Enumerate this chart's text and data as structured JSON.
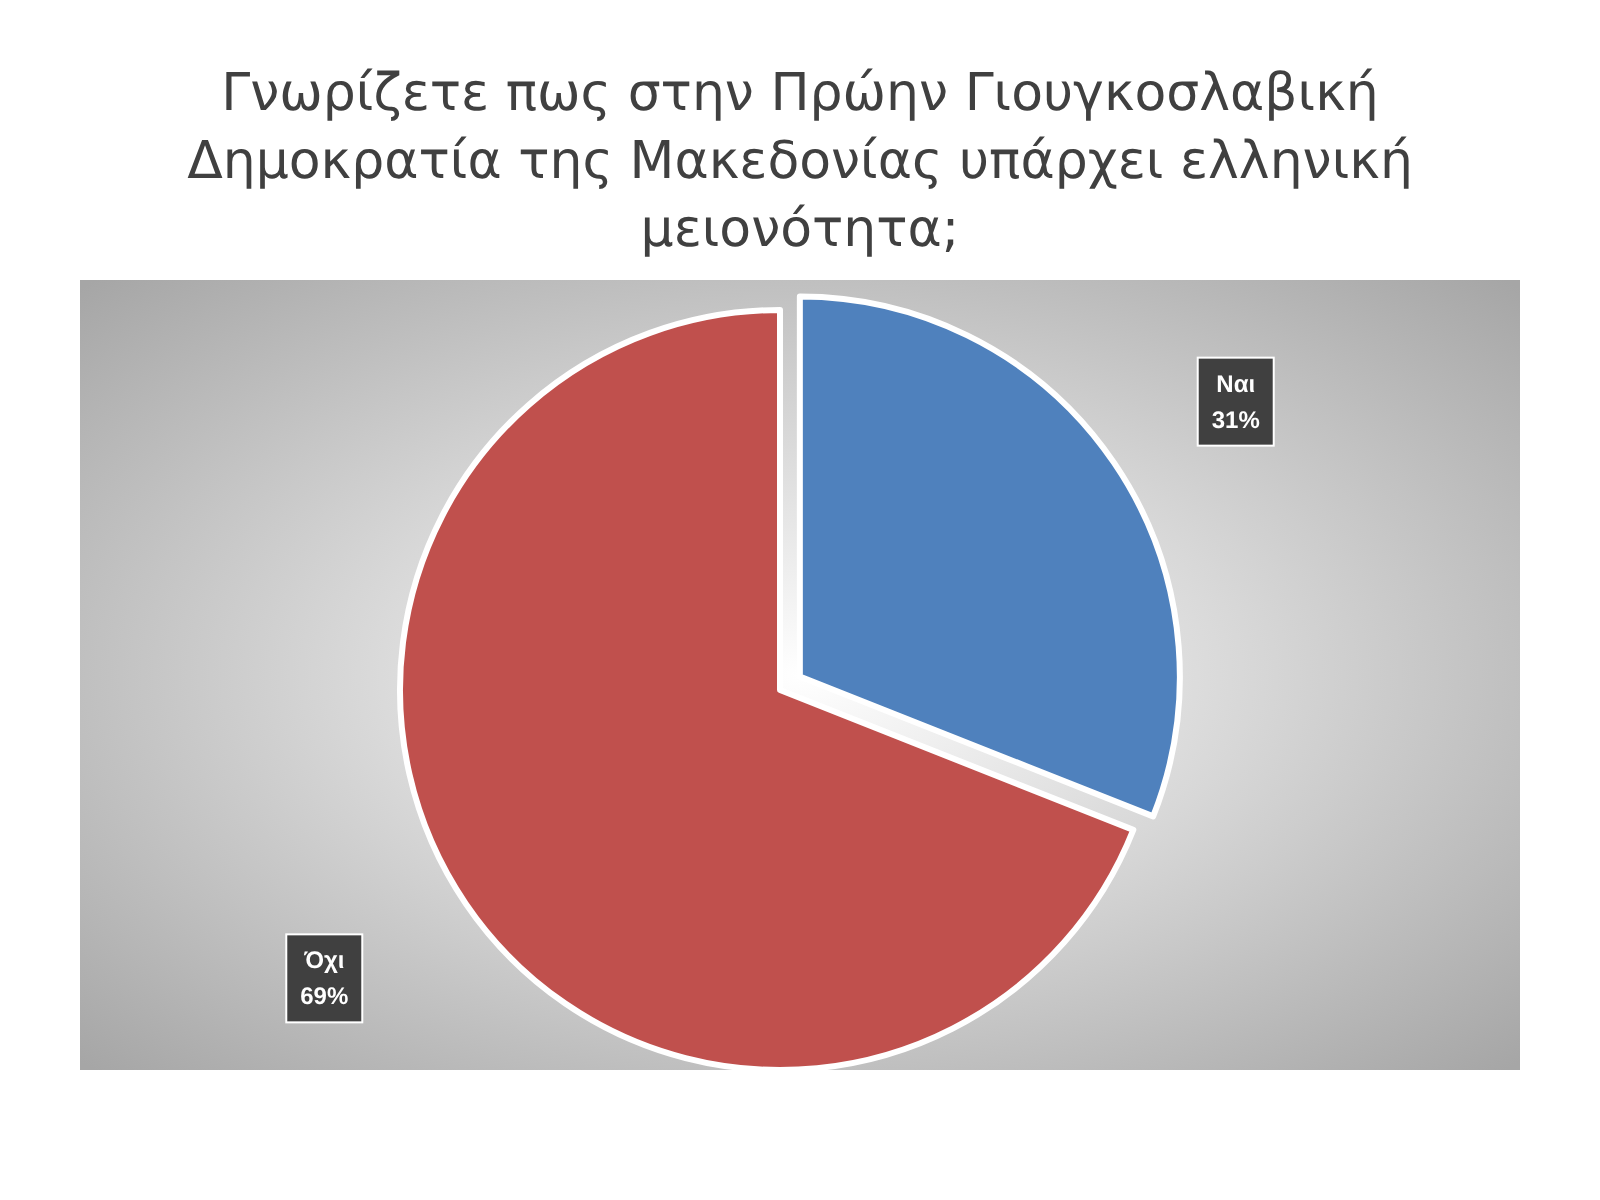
{
  "chart_data": {
    "type": "pie",
    "title": "Γνωρίζετε πως στην Πρώην Γιουγκοσλαβική\nΔημοκρατία της Μακεδονίας υπάρχει ελληνική\nμειονότητα;",
    "categories": [
      "Ναι",
      "Όχι"
    ],
    "values": [
      31,
      69
    ],
    "colors": [
      "#4f81bd",
      "#c0504d"
    ],
    "value_labels": [
      "31%",
      "69%"
    ]
  }
}
